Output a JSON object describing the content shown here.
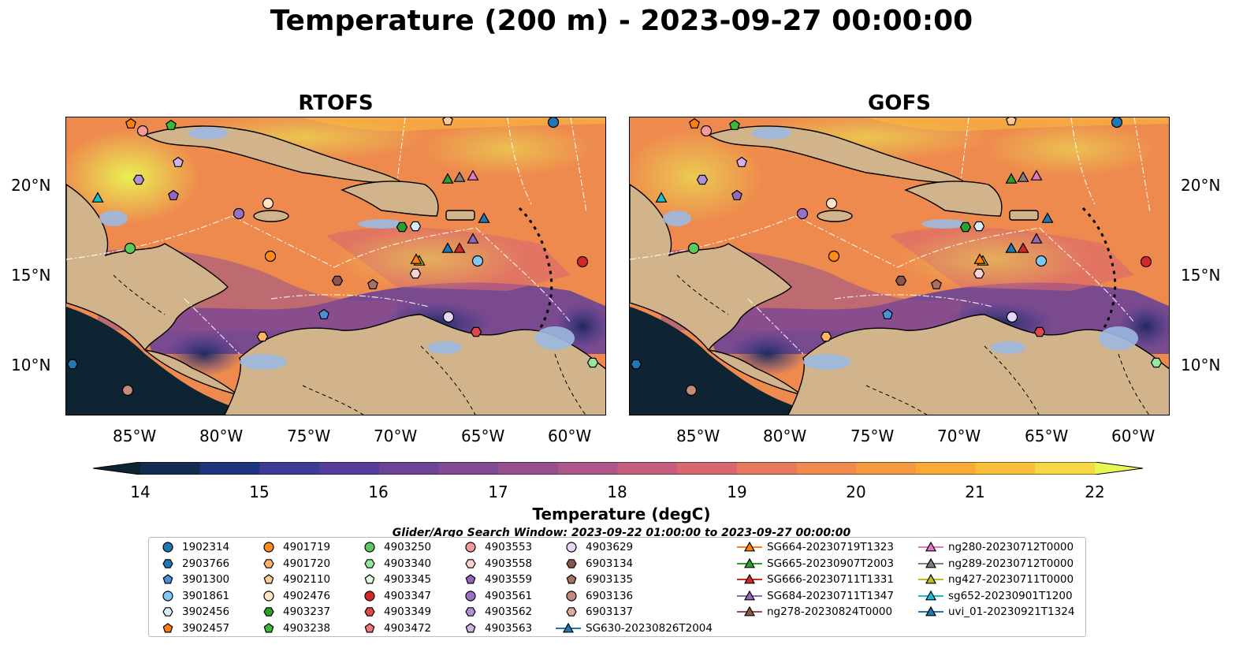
{
  "title": "Temperature (200 m) - 2023-09-27 00:00:00",
  "panels": [
    {
      "title": "RTOFS"
    },
    {
      "title": "GOFS"
    }
  ],
  "lat_labels": [
    "20°N",
    "15°N",
    "10°N"
  ],
  "lon_labels": [
    "85°W",
    "80°W",
    "75°W",
    "70°W",
    "65°W",
    "60°W"
  ],
  "colorbar": {
    "label": "Temperature (degC)",
    "ticks": [
      "14",
      "15",
      "16",
      "17",
      "18",
      "19",
      "20",
      "21",
      "22"
    ],
    "colormap": [
      "#0f2433",
      "#142b52",
      "#1f3580",
      "#3c3b96",
      "#553d99",
      "#6d4396",
      "#824a93",
      "#96508e",
      "#ad5788",
      "#c45f7e",
      "#d8686f",
      "#e57a5f",
      "#ee8a4e",
      "#f49a3f",
      "#f8ac37",
      "#f9c13a",
      "#f6d744",
      "#e8f553"
    ],
    "range": [
      14,
      22
    ],
    "extend": "both"
  },
  "search_window": "Glider/Argo Search Window: 2023-09-22 01:00:00 to 2023-09-27 00:00:00",
  "colors": {
    "land": "#d2b48c",
    "shelf": "#9bb8e0",
    "deep": "#0f2433"
  },
  "legend": {
    "argo": [
      {
        "label": "1902314",
        "marker": "circle",
        "color": "#1f77b4"
      },
      {
        "label": "2903766",
        "marker": "hexagon",
        "color": "#1f77b4"
      },
      {
        "label": "3901300",
        "marker": "pentagon",
        "color": "#4a90d9"
      },
      {
        "label": "3901861",
        "marker": "circle",
        "color": "#7ec8f2"
      },
      {
        "label": "3902456",
        "marker": "hexagon",
        "color": "#d6ecfa"
      },
      {
        "label": "3902457",
        "marker": "pentagon",
        "color": "#ff7f0e"
      },
      {
        "label": "4901719",
        "marker": "circle",
        "color": "#ff8c1a"
      },
      {
        "label": "4901720",
        "marker": "hexagon",
        "color": "#ffb366"
      },
      {
        "label": "4902110",
        "marker": "pentagon",
        "color": "#ffc999"
      },
      {
        "label": "4902476",
        "marker": "circle",
        "color": "#ffe4c4"
      },
      {
        "label": "4903237",
        "marker": "hexagon",
        "color": "#2ca02c"
      },
      {
        "label": "4903238",
        "marker": "pentagon",
        "color": "#3cb83c"
      },
      {
        "label": "4903250",
        "marker": "circle",
        "color": "#5cc95c"
      },
      {
        "label": "4903340",
        "marker": "hexagon",
        "color": "#98e698"
      },
      {
        "label": "4903345",
        "marker": "pentagon",
        "color": "#e0fae0"
      },
      {
        "label": "4903347",
        "marker": "circle",
        "color": "#d62728"
      },
      {
        "label": "4903349",
        "marker": "hexagon",
        "color": "#e04848"
      },
      {
        "label": "4903472",
        "marker": "pentagon",
        "color": "#f07878"
      },
      {
        "label": "4903553",
        "marker": "circle",
        "color": "#f59a9a"
      },
      {
        "label": "4903558",
        "marker": "hexagon",
        "color": "#fbd2d2"
      },
      {
        "label": "4903559",
        "marker": "pentagon",
        "color": "#9467bd"
      },
      {
        "label": "4903561",
        "marker": "circle",
        "color": "#9c6fc6"
      },
      {
        "label": "4903562",
        "marker": "hexagon",
        "color": "#b08fd6"
      },
      {
        "label": "4903563",
        "marker": "pentagon",
        "color": "#cdb3ea"
      },
      {
        "label": "4903629",
        "marker": "circle",
        "color": "#e8d6f7"
      },
      {
        "label": "6903134",
        "marker": "hexagon",
        "color": "#8c564b"
      },
      {
        "label": "6903135",
        "marker": "pentagon",
        "color": "#a96f62"
      },
      {
        "label": "6903136",
        "marker": "circle",
        "color": "#c48a7c"
      },
      {
        "label": "6903137",
        "marker": "hexagon",
        "color": "#dba99d"
      }
    ],
    "gliders": [
      {
        "label": "SG630-20230826T2004",
        "color": "#1f77b4"
      },
      {
        "label": "SG664-20230719T1323",
        "color": "#ff7f0e"
      },
      {
        "label": "SG665-20230907T2003",
        "color": "#2ca02c"
      },
      {
        "label": "SG666-20230711T1331",
        "color": "#d62728"
      },
      {
        "label": "SG684-20230711T1347",
        "color": "#9467bd"
      },
      {
        "label": "ng278-20230824T0000",
        "color": "#8c564b"
      },
      {
        "label": "ng280-20230712T0000",
        "color": "#e377c2"
      },
      {
        "label": "ng289-20230712T0000",
        "color": "#7f7f7f"
      },
      {
        "label": "ng427-20230711T0000",
        "color": "#bcbd22"
      },
      {
        "label": "sg652-20230901T1200",
        "color": "#17becf"
      },
      {
        "label": "uvi_01-20230921T1324",
        "color": "#1f77b4"
      }
    ]
  }
}
